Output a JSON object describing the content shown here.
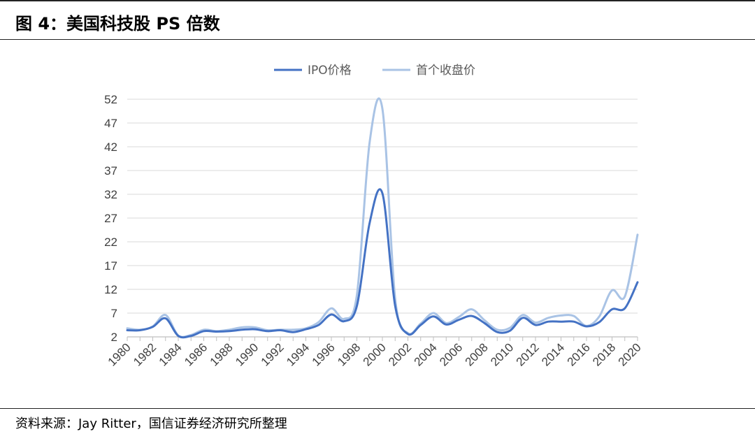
{
  "figure": {
    "title": "图 4：美国科技股 PS 倍数",
    "source": "资料来源：Jay Ritter，国信证券经济研究所整理"
  },
  "chart_data": {
    "type": "line",
    "title": "",
    "xlabel": "",
    "ylabel": "",
    "x": [
      1980,
      1981,
      1982,
      1983,
      1984,
      1985,
      1986,
      1987,
      1988,
      1989,
      1990,
      1991,
      1992,
      1993,
      1994,
      1995,
      1996,
      1997,
      1998,
      1999,
      2000,
      2001,
      2002,
      2003,
      2004,
      2005,
      2006,
      2007,
      2008,
      2009,
      2010,
      2011,
      2012,
      2013,
      2014,
      2015,
      2016,
      2017,
      2018,
      2019,
      2020
    ],
    "x_tick_labels": [
      "1980",
      "1982",
      "1984",
      "1986",
      "1988",
      "1990",
      "1992",
      "1994",
      "1996",
      "1998",
      "2000",
      "2002",
      "2004",
      "2006",
      "2008",
      "2010",
      "2012",
      "2014",
      "2016",
      "2018",
      "2020"
    ],
    "y_ticks": [
      2,
      7,
      12,
      17,
      22,
      27,
      32,
      37,
      42,
      47,
      52
    ],
    "ylim": [
      2,
      52
    ],
    "grid": "horizontal",
    "legend_position": "top-center",
    "series": [
      {
        "name": "IPO价格",
        "color": "#4472C4",
        "values": [
          3.4,
          3.4,
          4.1,
          5.9,
          2.2,
          2.2,
          3.2,
          3.1,
          3.2,
          3.5,
          3.6,
          3.2,
          3.4,
          3.0,
          3.6,
          4.5,
          6.7,
          5.3,
          8.5,
          26.0,
          32.2,
          8.5,
          2.6,
          4.5,
          6.3,
          4.6,
          5.6,
          6.4,
          4.9,
          3.0,
          3.3,
          6.0,
          4.5,
          5.2,
          5.2,
          5.2,
          4.2,
          5.1,
          7.8,
          8.0,
          13.5
        ]
      },
      {
        "name": "首个收盘价",
        "color": "#A9C3E5",
        "values": [
          3.8,
          3.5,
          4.2,
          6.6,
          2.3,
          2.4,
          3.5,
          3.2,
          3.5,
          4.0,
          4.0,
          3.4,
          3.5,
          3.5,
          3.8,
          5.1,
          8.0,
          5.8,
          10.8,
          43.0,
          50.0,
          10.0,
          2.8,
          4.8,
          7.0,
          4.9,
          6.2,
          7.8,
          5.5,
          3.5,
          3.9,
          6.6,
          5.0,
          6.0,
          6.5,
          6.4,
          4.3,
          6.3,
          11.8,
          10.5,
          23.5
        ]
      }
    ]
  }
}
